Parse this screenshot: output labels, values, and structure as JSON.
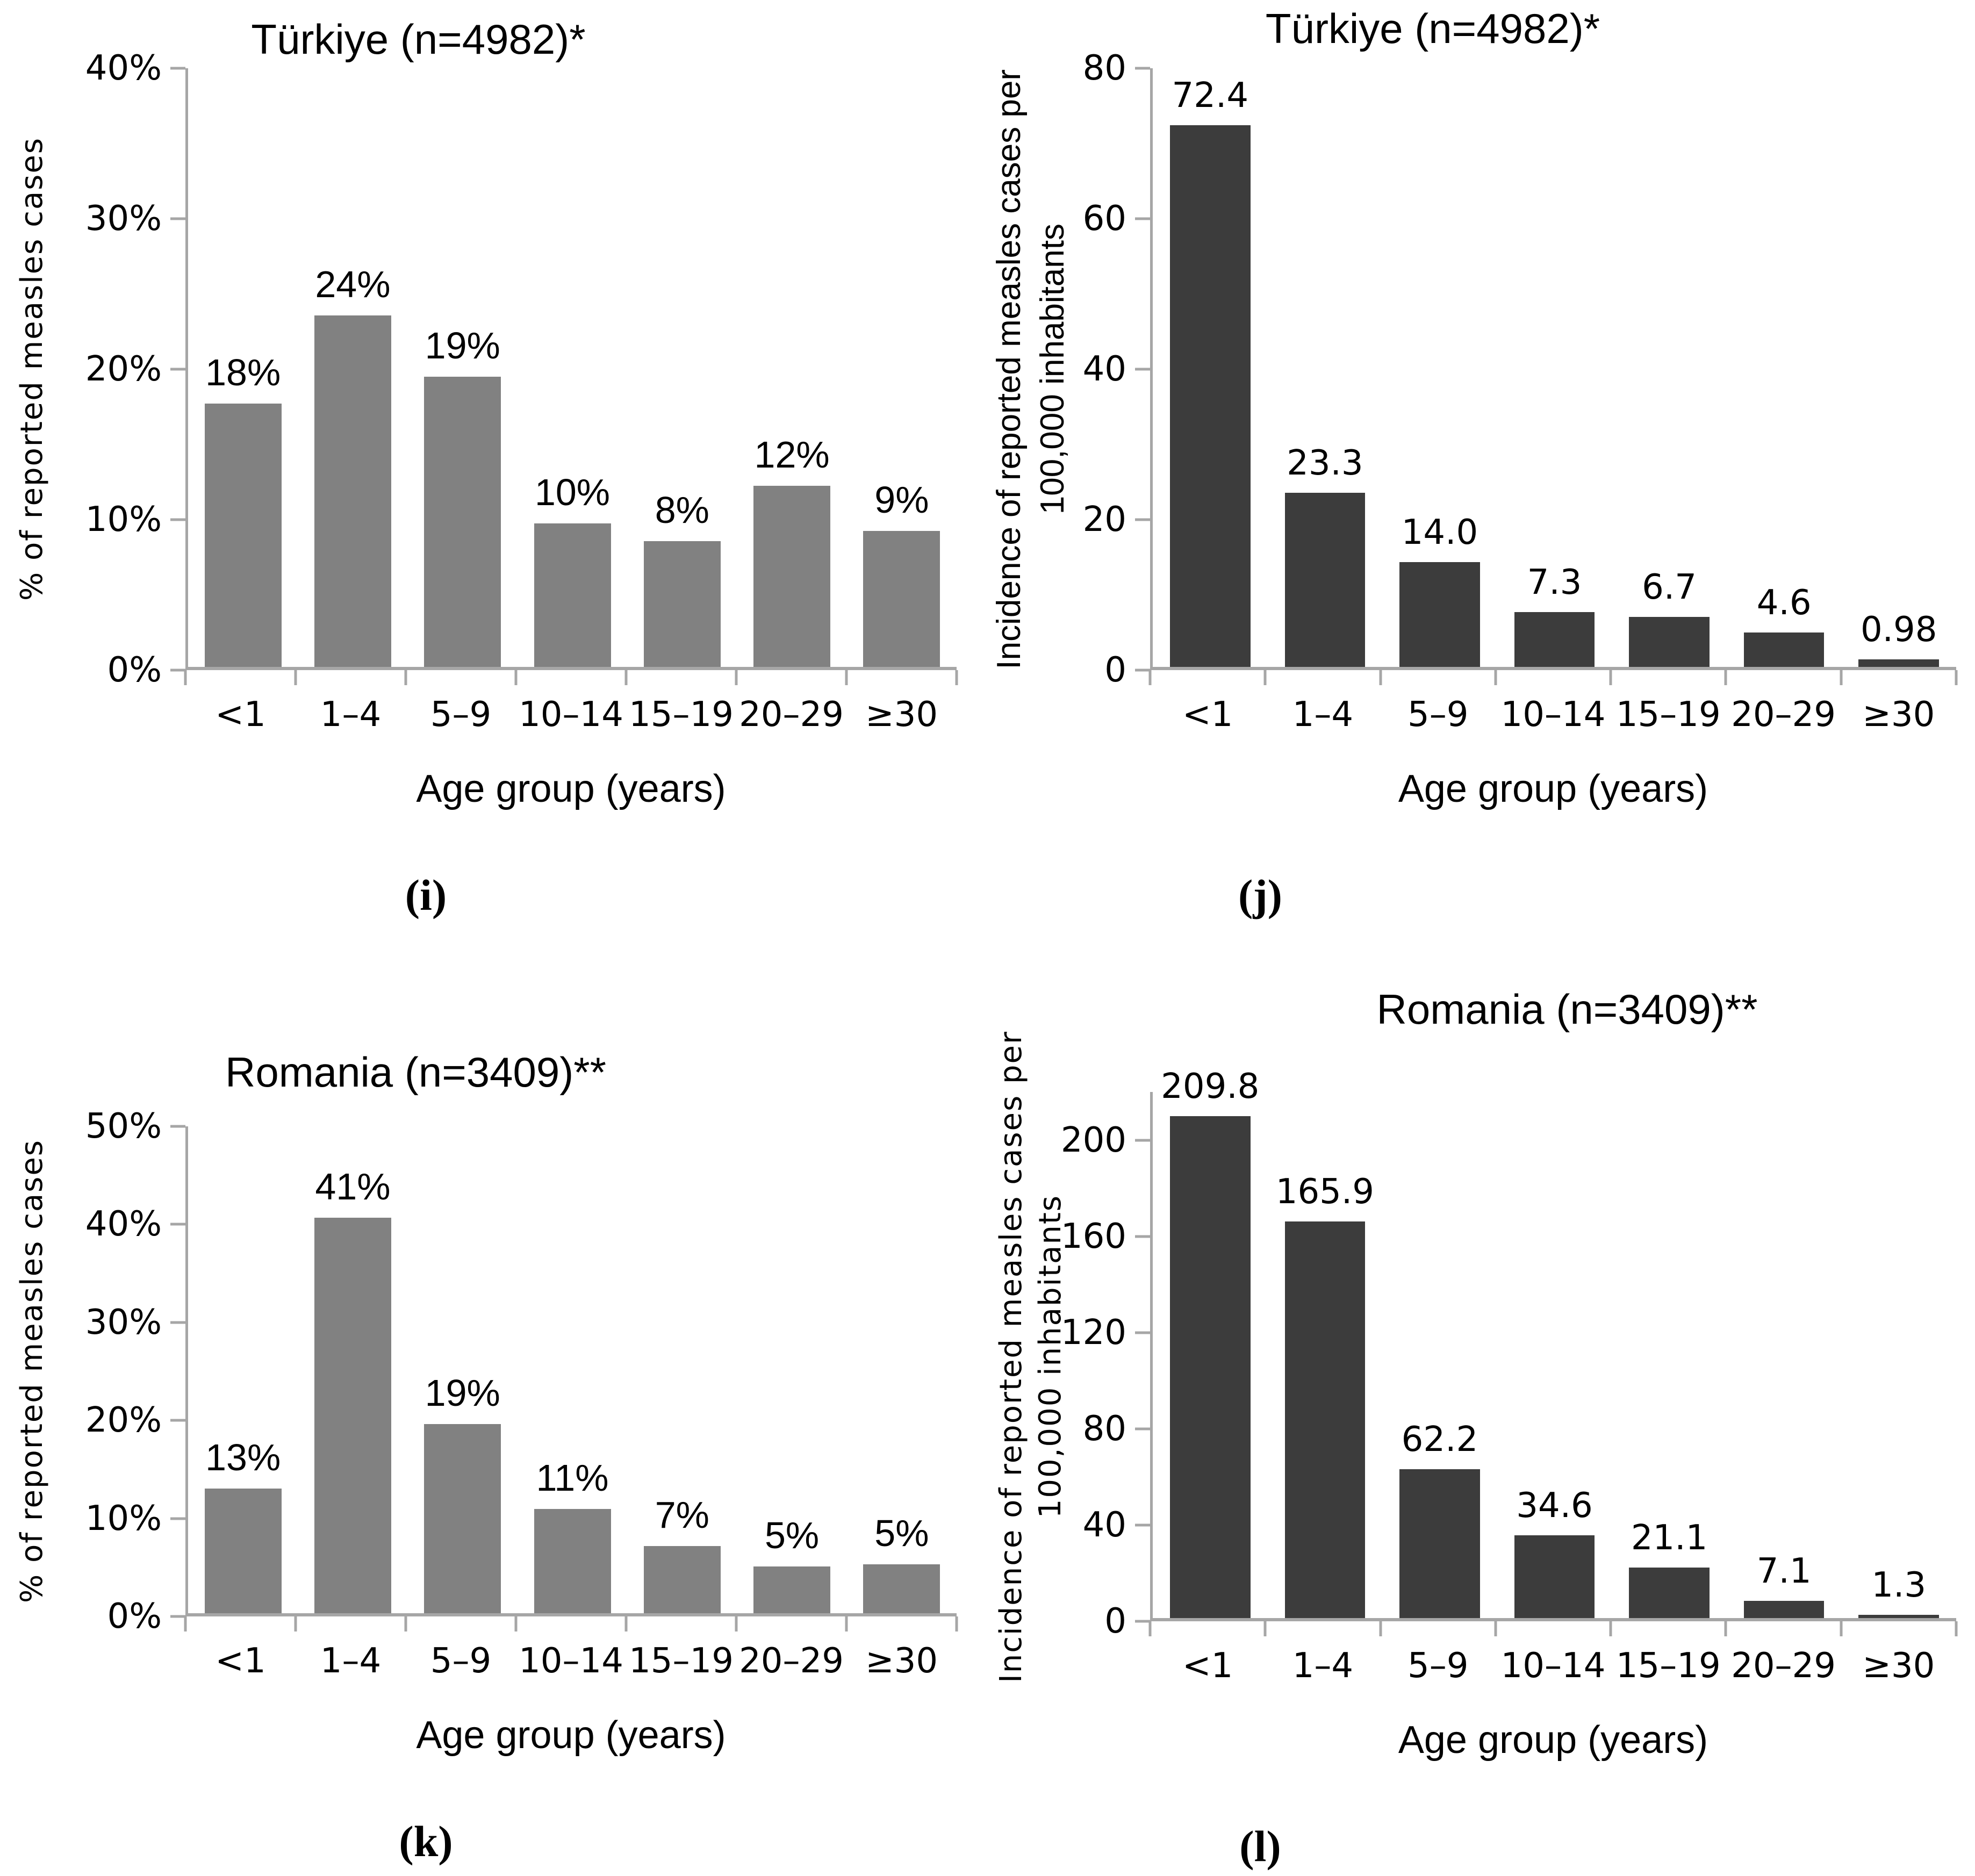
{
  "style": {
    "axis_color": "#a6a6a6",
    "text_color": "#000000",
    "background": "#ffffff"
  },
  "chart_data": [
    {
      "type": "bar",
      "panel_label": "(i)",
      "title": "Türkiye (n=4982)*",
      "y_axis_title_lines": [
        "% of reported measles cases"
      ],
      "x_axis_title": "Age group (years)",
      "categories": [
        "<1",
        "1–4",
        "5–9",
        "10–14",
        "15–19",
        "20–29",
        "≥30"
      ],
      "values": [
        17.6,
        23.5,
        19.4,
        9.6,
        8.4,
        12.1,
        9.1
      ],
      "bar_labels": [
        "18%",
        "24%",
        "19%",
        "10%",
        "8%",
        "12%",
        "9%"
      ],
      "ylim": [
        0,
        40
      ],
      "yticks": [
        {
          "v": 0,
          "label": "0%"
        },
        {
          "v": 10,
          "label": "10%"
        },
        {
          "v": 20,
          "label": "20%"
        },
        {
          "v": 30,
          "label": "30%"
        },
        {
          "v": 40,
          "label": "40%"
        }
      ],
      "bar_color": "#818181",
      "grid": false,
      "legend": null
    },
    {
      "type": "bar",
      "panel_label": "(j)",
      "title": "Türkiye (n=4982)*",
      "y_axis_title_lines": [
        "Incidence of reported measles cases per",
        "100,000 inhabitants"
      ],
      "x_axis_title": "Age group (years)",
      "categories": [
        "<1",
        "1–4",
        "5–9",
        "10–14",
        "15–19",
        "20–29",
        "≥30"
      ],
      "values": [
        72.4,
        23.3,
        14.0,
        7.3,
        6.7,
        4.6,
        0.98
      ],
      "bar_labels": [
        "72.4",
        "23.3",
        "14.0",
        "7.3",
        "6.7",
        "4.6",
        "0.98"
      ],
      "ylim": [
        0,
        80
      ],
      "yticks": [
        {
          "v": 0,
          "label": "0"
        },
        {
          "v": 20,
          "label": "20"
        },
        {
          "v": 40,
          "label": "40"
        },
        {
          "v": 60,
          "label": "60"
        },
        {
          "v": 80,
          "label": "80"
        }
      ],
      "bar_color": "#3c3c3c",
      "grid": false,
      "legend": null
    },
    {
      "type": "bar",
      "panel_label": "(k)",
      "title": "Romania (n=3409)**",
      "y_axis_title_lines": [
        "% of reported measles cases"
      ],
      "x_axis_title": "Age group (years)",
      "categories": [
        "<1",
        "1–4",
        "5–9",
        "10–14",
        "15–19",
        "20–29",
        "≥30"
      ],
      "values": [
        12.8,
        40.6,
        19.4,
        10.7,
        6.9,
        4.8,
        5.0
      ],
      "bar_labels": [
        "13%",
        "41%",
        "19%",
        "11%",
        "7%",
        "5%",
        "5%"
      ],
      "ylim": [
        0,
        50
      ],
      "yticks": [
        {
          "v": 0,
          "label": "0%"
        },
        {
          "v": 10,
          "label": "10%"
        },
        {
          "v": 20,
          "label": "20%"
        },
        {
          "v": 30,
          "label": "30%"
        },
        {
          "v": 40,
          "label": "40%"
        },
        {
          "v": 50,
          "label": "50%"
        }
      ],
      "bar_color": "#818181",
      "grid": false,
      "legend": null
    },
    {
      "type": "bar",
      "panel_label": "(l)",
      "title": "Romania (n=3409)**",
      "y_axis_title_lines": [
        "Incidence of reported measles cases per",
        "100,000 inhabitants"
      ],
      "x_axis_title": "Age group (years)",
      "categories": [
        "<1",
        "1–4",
        "5–9",
        "10–14",
        "15–19",
        "20–29",
        "≥30"
      ],
      "values": [
        209.8,
        165.9,
        62.2,
        34.6,
        21.1,
        7.1,
        1.3
      ],
      "bar_labels": [
        "209.8",
        "165.9",
        "62.2",
        "34.6",
        "21.1",
        "7.1",
        "1.3"
      ],
      "ylim": [
        0,
        220
      ],
      "yticks": [
        {
          "v": 0,
          "label": "0"
        },
        {
          "v": 40,
          "label": "40"
        },
        {
          "v": 80,
          "label": "80"
        },
        {
          "v": 120,
          "label": "120"
        },
        {
          "v": 160,
          "label": "160"
        },
        {
          "v": 200,
          "label": "200"
        }
      ],
      "bar_color": "#3c3c3c",
      "grid": false,
      "legend": null
    }
  ]
}
